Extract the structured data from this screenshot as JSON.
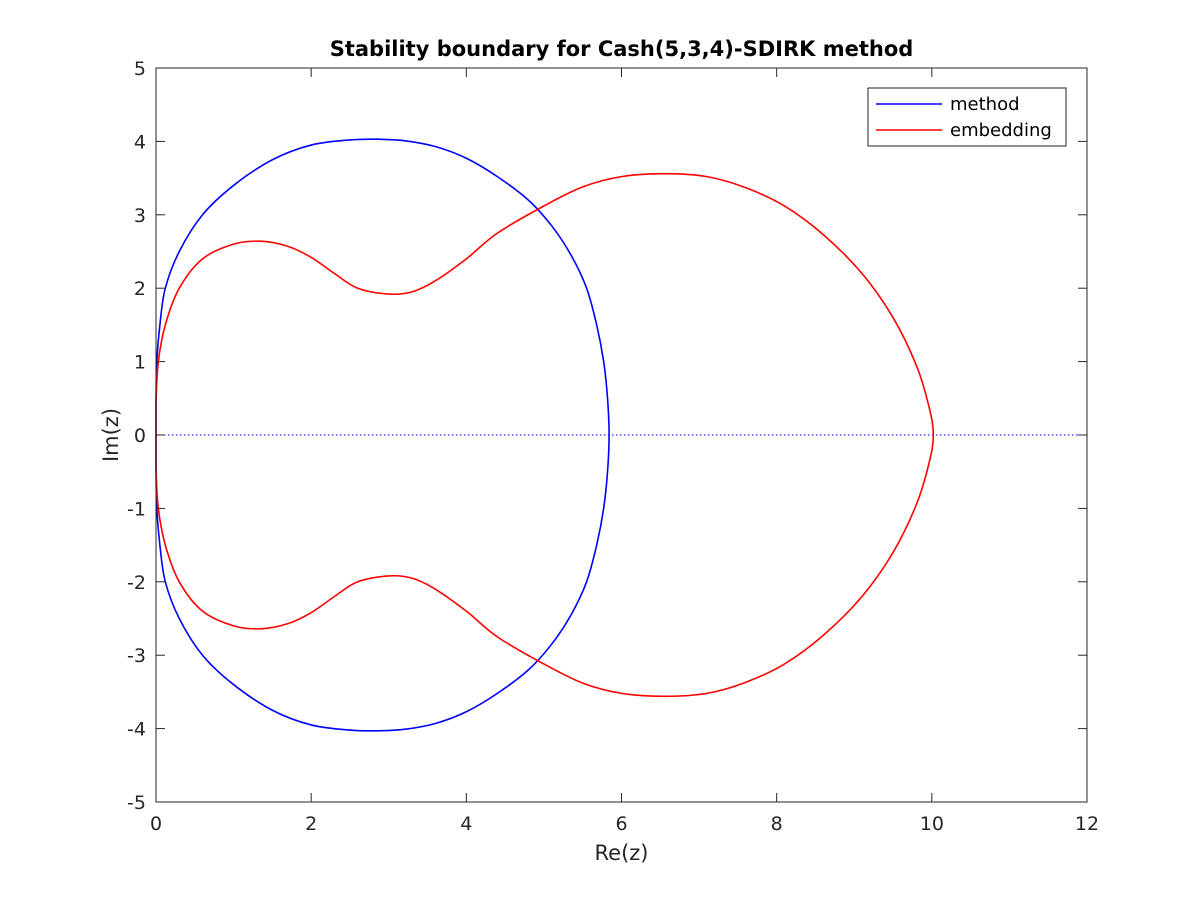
{
  "chart_data": {
    "type": "line",
    "title": "Stability boundary for Cash(5,3,4)-SDIRK method",
    "xlabel": "Re(z)",
    "ylabel": "Im(z)",
    "xlim": [
      0,
      12
    ],
    "ylim": [
      -5,
      5
    ],
    "xticks": [
      "0",
      "2",
      "4",
      "6",
      "8",
      "10",
      "12"
    ],
    "yticks": [
      "-5",
      "-4",
      "-3",
      "-2",
      "-1",
      "0",
      "1",
      "2",
      "3",
      "4",
      "5"
    ],
    "grid": false,
    "legend_position": "top-right",
    "reference_line": {
      "y": 0,
      "style": "dotted",
      "color": "#0000ff"
    },
    "series": [
      {
        "name": "method",
        "color": "#0000ff",
        "points": [
          [
            0,
            0
          ],
          [
            0.001,
            0.5
          ],
          [
            0.01,
            1.0
          ],
          [
            0.05,
            1.5
          ],
          [
            0.12,
            2.0
          ],
          [
            0.3,
            2.5
          ],
          [
            0.6,
            3.0
          ],
          [
            1.0,
            3.4
          ],
          [
            1.5,
            3.75
          ],
          [
            2.0,
            3.95
          ],
          [
            2.5,
            4.02
          ],
          [
            2.85,
            4.03
          ],
          [
            3.2,
            4.01
          ],
          [
            3.6,
            3.93
          ],
          [
            4.0,
            3.77
          ],
          [
            4.4,
            3.52
          ],
          [
            4.8,
            3.2
          ],
          [
            5.1,
            2.85
          ],
          [
            5.35,
            2.45
          ],
          [
            5.55,
            2.0
          ],
          [
            5.68,
            1.5
          ],
          [
            5.77,
            1.0
          ],
          [
            5.82,
            0.5
          ],
          [
            5.84,
            0
          ],
          [
            5.82,
            -0.5
          ],
          [
            5.77,
            -1.0
          ],
          [
            5.68,
            -1.5
          ],
          [
            5.55,
            -2.0
          ],
          [
            5.35,
            -2.45
          ],
          [
            5.1,
            -2.85
          ],
          [
            4.8,
            -3.2
          ],
          [
            4.4,
            -3.52
          ],
          [
            4.0,
            -3.77
          ],
          [
            3.6,
            -3.93
          ],
          [
            3.2,
            -4.01
          ],
          [
            2.85,
            -4.03
          ],
          [
            2.5,
            -4.02
          ],
          [
            2.0,
            -3.95
          ],
          [
            1.5,
            -3.75
          ],
          [
            1.0,
            -3.4
          ],
          [
            0.6,
            -3.0
          ],
          [
            0.3,
            -2.5
          ],
          [
            0.12,
            -2.0
          ],
          [
            0.05,
            -1.5
          ],
          [
            0.01,
            -1.0
          ],
          [
            0.001,
            -0.5
          ],
          [
            0,
            0
          ]
        ]
      },
      {
        "name": "embedding",
        "color": "#ff0000",
        "points": [
          [
            0,
            0
          ],
          [
            0.002,
            0.5
          ],
          [
            0.03,
            1.0
          ],
          [
            0.12,
            1.5
          ],
          [
            0.3,
            2.0
          ],
          [
            0.6,
            2.4
          ],
          [
            1.0,
            2.6
          ],
          [
            1.35,
            2.64
          ],
          [
            1.7,
            2.57
          ],
          [
            2.0,
            2.42
          ],
          [
            2.3,
            2.2
          ],
          [
            2.6,
            2.0
          ],
          [
            3.0,
            1.92
          ],
          [
            3.3,
            1.95
          ],
          [
            3.6,
            2.1
          ],
          [
            4.0,
            2.4
          ],
          [
            4.4,
            2.75
          ],
          [
            5.0,
            3.12
          ],
          [
            5.5,
            3.38
          ],
          [
            6.0,
            3.52
          ],
          [
            6.55,
            3.56
          ],
          [
            7.1,
            3.52
          ],
          [
            7.6,
            3.37
          ],
          [
            8.1,
            3.12
          ],
          [
            8.6,
            2.73
          ],
          [
            9.1,
            2.2
          ],
          [
            9.5,
            1.6
          ],
          [
            9.8,
            0.95
          ],
          [
            9.96,
            0.4
          ],
          [
            10.02,
            0
          ],
          [
            9.96,
            -0.4
          ],
          [
            9.8,
            -0.95
          ],
          [
            9.5,
            -1.6
          ],
          [
            9.1,
            -2.2
          ],
          [
            8.6,
            -2.73
          ],
          [
            8.1,
            -3.12
          ],
          [
            7.6,
            -3.37
          ],
          [
            7.1,
            -3.52
          ],
          [
            6.55,
            -3.56
          ],
          [
            6.0,
            -3.52
          ],
          [
            5.5,
            -3.38
          ],
          [
            5.0,
            -3.12
          ],
          [
            4.4,
            -2.75
          ],
          [
            4.0,
            -2.4
          ],
          [
            3.6,
            -2.1
          ],
          [
            3.3,
            -1.95
          ],
          [
            3.0,
            -1.92
          ],
          [
            2.6,
            -2.0
          ],
          [
            2.3,
            -2.2
          ],
          [
            2.0,
            -2.42
          ],
          [
            1.7,
            -2.57
          ],
          [
            1.35,
            -2.64
          ],
          [
            1.0,
            -2.6
          ],
          [
            0.6,
            -2.4
          ],
          [
            0.3,
            -2.0
          ],
          [
            0.12,
            -1.5
          ],
          [
            0.03,
            -1.0
          ],
          [
            0.002,
            -0.5
          ],
          [
            0,
            0
          ]
        ]
      }
    ]
  }
}
